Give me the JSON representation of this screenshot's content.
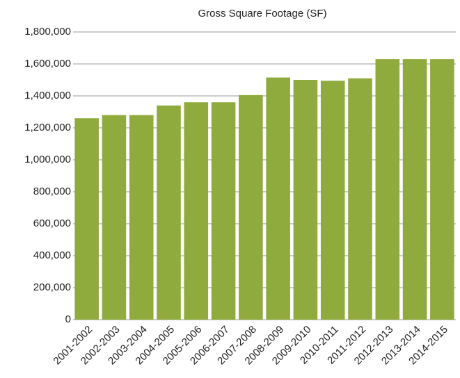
{
  "chart_data": {
    "type": "bar",
    "title": "Gross Square Footage (SF)",
    "categories": [
      "2001-2002",
      "2002-2003",
      "2003-2004",
      "2004-2005",
      "2005-2006",
      "2006-2007",
      "2007-2008",
      "2008-2009",
      "2009-2010",
      "2010-2011",
      "2011-2012",
      "2012-2013",
      "2013-2014",
      "2014-2015"
    ],
    "values": [
      1260000,
      1280000,
      1280000,
      1340000,
      1360000,
      1360000,
      1405000,
      1515000,
      1500000,
      1495000,
      1510000,
      1630000,
      1630000,
      1630000
    ],
    "color": "#8fab3d",
    "ylim": [
      0,
      1800000
    ],
    "yticks": [
      0,
      {
        "value": 200000,
        "label": "200,000"
      },
      {
        "value": 400000,
        "label": "400,000"
      },
      {
        "value": 600000,
        "label": "600,000"
      },
      {
        "value": 800000,
        "label": "800,000"
      },
      {
        "value": 1000000,
        "label": "1,000,000"
      },
      {
        "value": 1200000,
        "label": "1,200,000"
      },
      {
        "value": 1400000,
        "label": "1,400,000"
      },
      {
        "value": 1600000,
        "label": "1,600,000"
      },
      {
        "value": 1800000,
        "label": "1,800,000"
      }
    ],
    "grid": true
  }
}
